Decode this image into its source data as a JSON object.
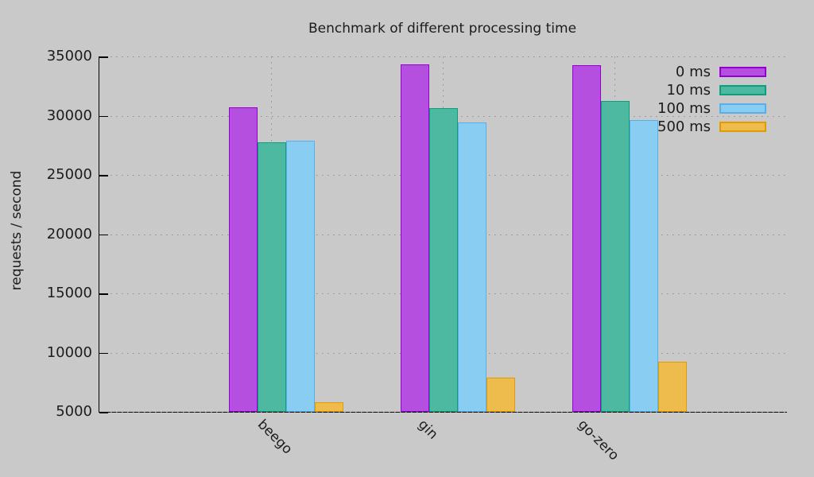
{
  "chart_data": {
    "type": "bar",
    "title": "Benchmark of different processing time",
    "xlabel": "",
    "ylabel": "requests / second",
    "ylim": [
      5000,
      35000
    ],
    "ytick_step": 5000,
    "ytick_labels": [
      "5000",
      "10000",
      "15000",
      "20000",
      "25000",
      "30000",
      "35000"
    ],
    "grid": true,
    "legend_position": "top-right",
    "background_color": "#c9c9c9",
    "categories": [
      "beego",
      "gin",
      "go-zero"
    ],
    "series": [
      {
        "name": "0 ms",
        "values": [
          30700,
          34300,
          34250
        ],
        "fill": "#b44fdf",
        "border": "#9400d3"
      },
      {
        "name": "10 ms",
        "values": [
          27750,
          30650,
          31250
        ],
        "fill": "#4cb9a0",
        "border": "#0d9e7f"
      },
      {
        "name": "100 ms",
        "values": [
          27900,
          29400,
          29600
        ],
        "fill": "#8acdf2",
        "border": "#57b0e8"
      },
      {
        "name": "500 ms",
        "values": [
          5800,
          7900,
          9200
        ],
        "fill": "#eebb4d",
        "border": "#e09c00"
      }
    ]
  }
}
